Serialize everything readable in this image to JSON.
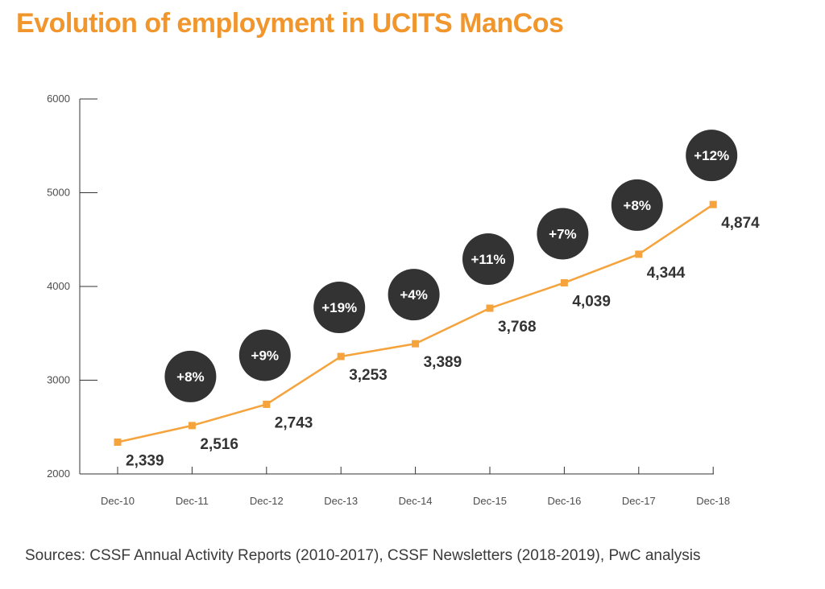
{
  "title": "Evolution of employment in UCITS ManCos",
  "source": "Sources: CSSF Annual Activity Reports (2010-2017), CSSF Newsletters (2018-2019), PwC analysis",
  "colors": {
    "title": "#f0962d",
    "line": "#f5a33c",
    "marker": "#f5a33c",
    "bubble": "#333333",
    "axis": "#333333"
  },
  "chart_data": {
    "type": "line",
    "title": "Evolution of employment in UCITS ManCos",
    "xlabel": "",
    "ylabel": "",
    "categories": [
      "Dec-10",
      "Dec-11",
      "Dec-12",
      "Dec-13",
      "Dec-14",
      "Dec-15",
      "Dec-16",
      "Dec-17",
      "Dec-18"
    ],
    "values": [
      2339,
      2516,
      2743,
      3253,
      3389,
      3768,
      4039,
      4344,
      4874
    ],
    "value_labels": [
      "2,339",
      "2,516",
      "2,743",
      "3,253",
      "3,389",
      "3,768",
      "4,039",
      "4,344",
      "4,874"
    ],
    "growth_labels": [
      "",
      "+8%",
      "+9%",
      "+19%",
      "+4%",
      "+11%",
      "+7%",
      "+8%",
      "+12%"
    ],
    "ylim": [
      2000,
      6000
    ],
    "yticks": [
      2000,
      3000,
      4000,
      5000,
      6000
    ],
    "ytick_labels": [
      "2000",
      "3000",
      "4000",
      "5000",
      "6000"
    ],
    "grid": false,
    "legend": "none"
  }
}
